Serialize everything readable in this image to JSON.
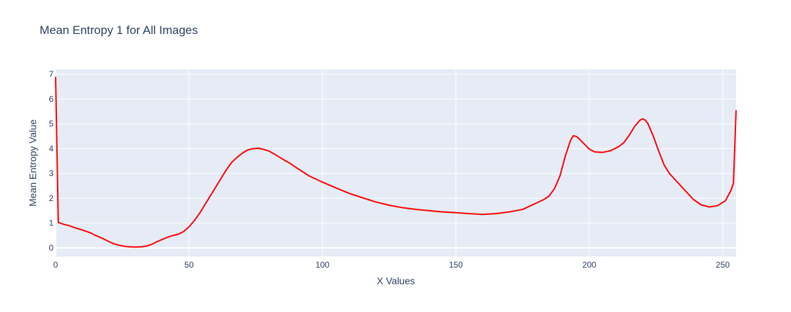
{
  "chart_data": {
    "type": "line",
    "title": "Mean Entropy 1 for All Images",
    "xlabel": "X Values",
    "ylabel": "Mean Entropy Value",
    "xlim": [
      0,
      255
    ],
    "ylim": [
      -0.35,
      7.2
    ],
    "xticks": [
      0,
      50,
      100,
      150,
      200,
      250
    ],
    "yticks": [
      0,
      1,
      2,
      3,
      4,
      5,
      6,
      7
    ],
    "grid": true,
    "colors": {
      "line": "#ff0000",
      "plot_bg": "#e5ecf6",
      "grid": "#ffffff",
      "text": "#2a3f5f"
    },
    "series": [
      {
        "x": [
          0,
          1,
          3,
          5,
          7,
          10,
          13,
          15,
          18,
          20,
          22,
          24,
          26,
          28,
          30,
          32,
          34,
          36,
          38,
          40,
          42,
          44,
          46,
          48,
          50,
          52,
          54,
          56,
          58,
          60,
          62,
          64,
          66,
          68,
          70,
          72,
          74,
          76,
          78,
          80,
          82,
          84,
          86,
          88,
          90,
          95,
          100,
          105,
          110,
          115,
          120,
          125,
          130,
          135,
          140,
          145,
          150,
          155,
          160,
          165,
          170,
          175,
          180,
          183,
          185,
          187,
          189,
          191,
          193,
          194,
          195,
          196,
          198,
          200,
          202,
          205,
          208,
          211,
          213,
          215,
          217,
          219,
          220,
          221,
          222,
          224,
          226,
          228,
          230,
          233,
          236,
          239,
          242,
          245,
          248,
          251,
          253,
          254,
          255
        ],
        "y": [
          6.9,
          1.03,
          0.95,
          0.9,
          0.82,
          0.72,
          0.61,
          0.5,
          0.36,
          0.25,
          0.16,
          0.1,
          0.06,
          0.04,
          0.03,
          0.04,
          0.07,
          0.14,
          0.25,
          0.34,
          0.43,
          0.5,
          0.55,
          0.66,
          0.85,
          1.1,
          1.4,
          1.75,
          2.1,
          2.45,
          2.8,
          3.15,
          3.45,
          3.65,
          3.82,
          3.95,
          4.0,
          4.02,
          3.97,
          3.9,
          3.78,
          3.65,
          3.52,
          3.4,
          3.25,
          2.9,
          2.65,
          2.42,
          2.2,
          2.02,
          1.85,
          1.72,
          1.62,
          1.55,
          1.5,
          1.45,
          1.42,
          1.38,
          1.35,
          1.38,
          1.45,
          1.55,
          1.8,
          1.95,
          2.1,
          2.4,
          2.9,
          3.7,
          4.35,
          4.52,
          4.5,
          4.42,
          4.2,
          3.98,
          3.87,
          3.85,
          3.92,
          4.08,
          4.25,
          4.55,
          4.9,
          5.15,
          5.2,
          5.15,
          5.0,
          4.5,
          3.9,
          3.35,
          3.0,
          2.65,
          2.3,
          1.95,
          1.73,
          1.65,
          1.7,
          1.9,
          2.3,
          2.6,
          5.55
        ]
      }
    ]
  }
}
